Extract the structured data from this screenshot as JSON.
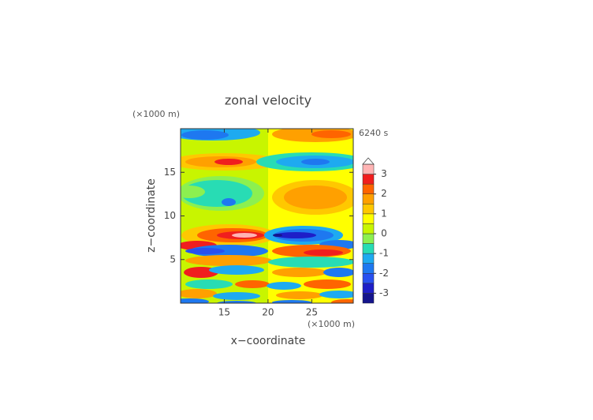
{
  "chart_data": {
    "type": "contour",
    "title": "zonal velocity",
    "x_label": "x−coordinate",
    "y_label": "z−coordinate",
    "x_unit": "(×1000 m)",
    "y_unit": "(×1000 m)",
    "time_label": "6240 s",
    "xlim": [
      10,
      29.75
    ],
    "ylim": [
      0,
      20
    ],
    "xticks": [
      15,
      20,
      25
    ],
    "yticks": [
      5,
      10,
      15
    ],
    "levels": [
      -3.5,
      -3,
      -2.5,
      -2,
      -1.5,
      -1,
      -0.5,
      0,
      0.5,
      1,
      1.5,
      2,
      2.5,
      3,
      3.5
    ],
    "colors": [
      "#14148c",
      "#1e1ec8",
      "#2850f0",
      "#1e78f0",
      "#1eaaf0",
      "#28dcb4",
      "#8cf050",
      "#c8f500",
      "#ffff00",
      "#ffc800",
      "#ffa000",
      "#ff6400",
      "#f01e1e",
      "#ffb4b4"
    ],
    "colorbar_ticks": [
      -3,
      -2,
      -1,
      0,
      1,
      2,
      3
    ]
  }
}
